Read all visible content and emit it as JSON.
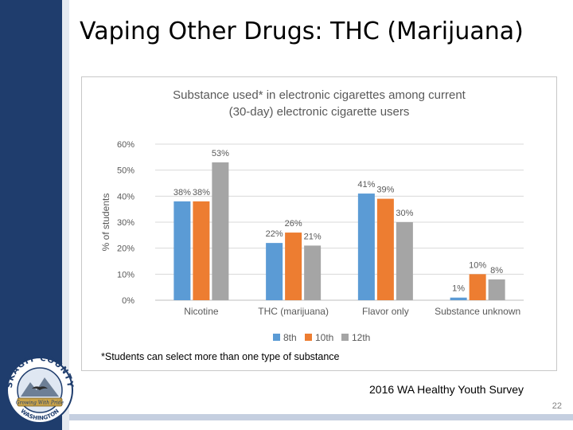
{
  "slide": {
    "title": "Vaping Other Drugs: THC (Marijuana)",
    "source": "2016 WA Healthy Youth Survey",
    "page_number": "22",
    "footnote": "*Students can select more than one type of substance"
  },
  "logo": {
    "top_text": "SKAGIT COUNTY",
    "bottom_text": "WASHINGTON",
    "banner_text": "Growing With Pride"
  },
  "colors": {
    "sidebar": "#1f3d6d",
    "series_8th": "#5b9bd5",
    "series_10th": "#ed7d31",
    "series_12th": "#a5a5a5"
  },
  "chart_data": {
    "type": "bar",
    "title_lines": [
      "Substance used* in electronic cigarettes among current",
      "(30-day) electronic cigarette users"
    ],
    "ylabel": "% of students",
    "ylim": [
      0,
      60
    ],
    "yticks": [
      "0%",
      "10%",
      "20%",
      "30%",
      "40%",
      "50%",
      "60%"
    ],
    "categories": [
      "Nicotine",
      "THC (marijuana)",
      "Flavor only",
      "Substance unknown"
    ],
    "series": [
      {
        "name": "8th",
        "values": [
          38,
          22,
          41,
          1
        ],
        "labels": [
          "38%",
          "22%",
          "41%",
          "1%"
        ]
      },
      {
        "name": "10th",
        "values": [
          38,
          26,
          39,
          10
        ],
        "labels": [
          "38%",
          "26%",
          "39%",
          "10%"
        ]
      },
      {
        "name": "12th",
        "values": [
          53,
          21,
          30,
          8
        ],
        "labels": [
          "53%",
          "21%",
          "30%",
          "8%"
        ]
      }
    ],
    "grid": true,
    "legend_position": "bottom"
  }
}
